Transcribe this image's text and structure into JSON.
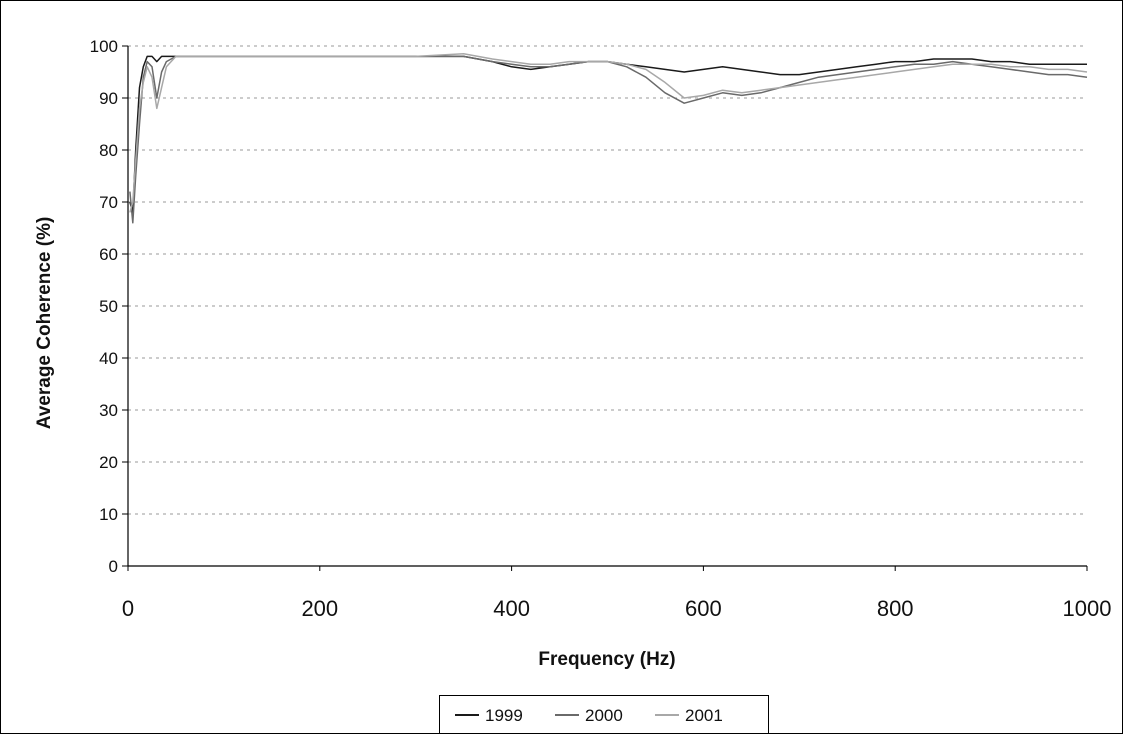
{
  "chart_data": {
    "type": "line",
    "title": "",
    "xlabel": "Frequency (Hz)",
    "ylabel": "Average Coherence (%)",
    "xlim": [
      0,
      1000
    ],
    "ylim": [
      0,
      100
    ],
    "xticks": [
      "0",
      "200",
      "400",
      "600",
      "800",
      "1000"
    ],
    "yticks": [
      "0",
      "10",
      "20",
      "30",
      "40",
      "50",
      "60",
      "70",
      "80",
      "90",
      "100"
    ],
    "grid": "horizontal",
    "legend_position": "bottom-center",
    "series": [
      {
        "name": "1999",
        "color": "#1a1a1a",
        "x": [
          2,
          5,
          8,
          12,
          16,
          20,
          25,
          30,
          35,
          40,
          50,
          80,
          120,
          200,
          300,
          350,
          380,
          400,
          420,
          440,
          460,
          480,
          500,
          520,
          540,
          560,
          580,
          600,
          620,
          640,
          660,
          680,
          700,
          720,
          740,
          760,
          780,
          800,
          820,
          840,
          860,
          880,
          900,
          920,
          940,
          960,
          980,
          1000
        ],
        "y": [
          70,
          68,
          80,
          92,
          96,
          98,
          98,
          97,
          98,
          98,
          98,
          98,
          98,
          98,
          98,
          98,
          97,
          96,
          95.5,
          96,
          96.5,
          97,
          97,
          96.5,
          96,
          95.5,
          95,
          95.5,
          96,
          95.5,
          95,
          94.5,
          94.5,
          95,
          95.5,
          96,
          96.5,
          97,
          97,
          97.5,
          97.5,
          97.5,
          97,
          97,
          96.5,
          96.5,
          96.5,
          96.5
        ]
      },
      {
        "name": "2000",
        "color": "#6a6a6a",
        "x": [
          2,
          5,
          8,
          12,
          16,
          20,
          25,
          30,
          35,
          40,
          50,
          80,
          120,
          200,
          300,
          350,
          380,
          400,
          420,
          440,
          460,
          480,
          500,
          520,
          540,
          560,
          580,
          600,
          620,
          640,
          660,
          680,
          700,
          720,
          740,
          760,
          780,
          800,
          820,
          840,
          860,
          880,
          900,
          920,
          940,
          960,
          980,
          1000
        ],
        "y": [
          72,
          66,
          75,
          85,
          94,
          97,
          96,
          90,
          95,
          97,
          98,
          98,
          98,
          98,
          98,
          98,
          97,
          96.5,
          96,
          96,
          96.5,
          97,
          97,
          96,
          94,
          91,
          89,
          90,
          91,
          90.5,
          91,
          92,
          93,
          94,
          94.5,
          95,
          95.5,
          96,
          96.5,
          96.5,
          97,
          96.5,
          96,
          95.5,
          95,
          94.5,
          94.5,
          94
        ]
      },
      {
        "name": "2001",
        "color": "#a8a8a8",
        "x": [
          2,
          5,
          8,
          12,
          16,
          20,
          25,
          30,
          35,
          40,
          50,
          80,
          120,
          200,
          300,
          350,
          380,
          400,
          420,
          440,
          460,
          480,
          500,
          520,
          540,
          560,
          580,
          600,
          620,
          640,
          660,
          680,
          700,
          720,
          740,
          760,
          780,
          800,
          820,
          840,
          860,
          880,
          900,
          920,
          940,
          960,
          980,
          1000
        ],
        "y": [
          68,
          70,
          78,
          88,
          93,
          96,
          94,
          88,
          92,
          96,
          98,
          98,
          98,
          98,
          98,
          98.5,
          97.5,
          97,
          96.5,
          96.5,
          97,
          97,
          97,
          96.5,
          95.5,
          93,
          90,
          90.5,
          91.5,
          91,
          91.5,
          92,
          92.5,
          93,
          93.5,
          94,
          94.5,
          95,
          95.5,
          96,
          96.5,
          96.5,
          96.5,
          96,
          96,
          95.5,
          95.5,
          95
        ]
      }
    ]
  }
}
